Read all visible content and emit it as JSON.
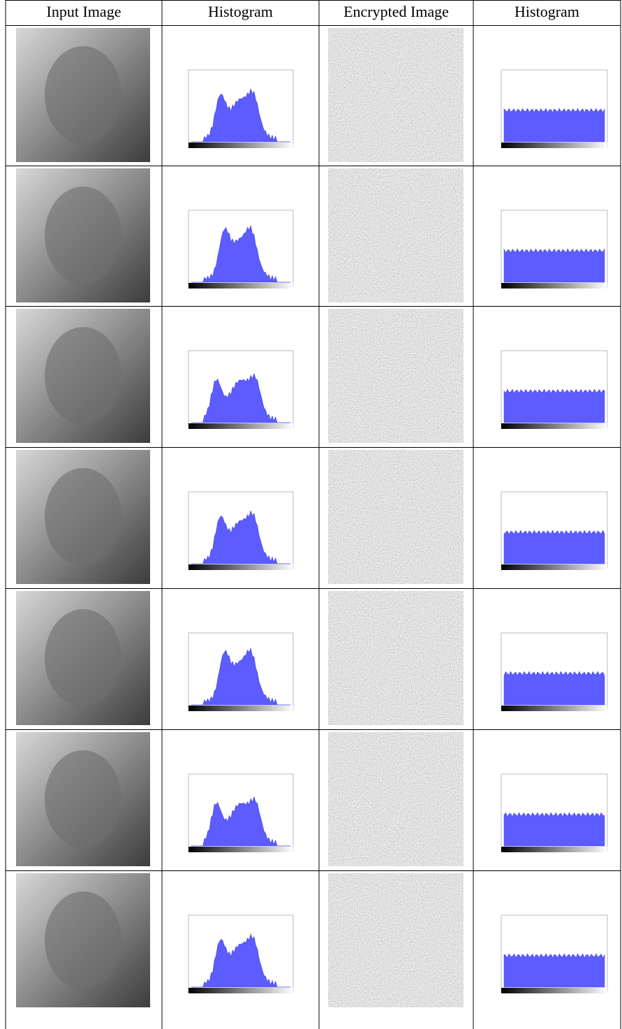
{
  "table": {
    "header": [
      "Input Image",
      "Histogram",
      "Encrypted Image",
      "Histogram"
    ]
  }
}
